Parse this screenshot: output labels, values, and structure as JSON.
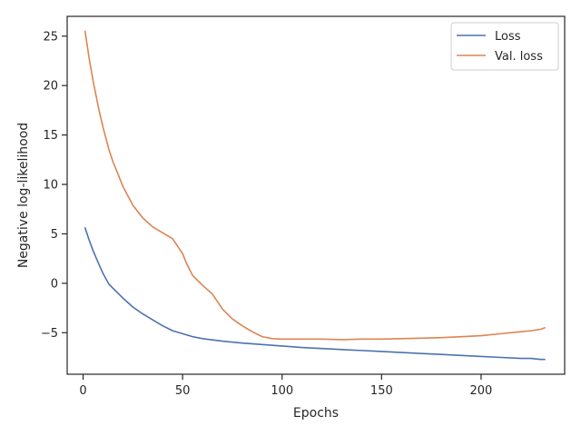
{
  "chart_data": {
    "type": "line",
    "xlabel": "Epochs",
    "ylabel": "Negative log-likelihood",
    "xlim": [
      -8,
      242
    ],
    "ylim": [
      -9.2,
      27.0
    ],
    "xticks": [
      0,
      50,
      100,
      150,
      200
    ],
    "yticks": [
      -5,
      0,
      5,
      10,
      15,
      20,
      25
    ],
    "xtick_labels": [
      "0",
      "50",
      "100",
      "150",
      "200"
    ],
    "ytick_labels": [
      "−5",
      "0",
      "5",
      "10",
      "15",
      "20",
      "25"
    ],
    "grid": false,
    "legend_position": "top-right",
    "series": [
      {
        "name": "Loss",
        "color": "#4c72b0",
        "x": [
          1,
          3,
          5,
          8,
          10,
          13,
          15,
          20,
          25,
          30,
          35,
          40,
          45,
          50,
          55,
          60,
          70,
          80,
          90,
          100,
          110,
          120,
          130,
          140,
          150,
          160,
          170,
          180,
          190,
          200,
          210,
          220,
          225,
          230,
          232
        ],
        "y": [
          5.6,
          4.4,
          3.3,
          1.9,
          1.0,
          -0.1,
          -0.5,
          -1.5,
          -2.4,
          -3.1,
          -3.7,
          -4.3,
          -4.8,
          -5.1,
          -5.4,
          -5.6,
          -5.85,
          -6.05,
          -6.2,
          -6.35,
          -6.5,
          -6.6,
          -6.7,
          -6.8,
          -6.9,
          -7.0,
          -7.1,
          -7.2,
          -7.3,
          -7.4,
          -7.5,
          -7.6,
          -7.6,
          -7.7,
          -7.7
        ]
      },
      {
        "name": "Val. loss",
        "color": "#dd8452",
        "x": [
          1,
          3,
          5,
          8,
          10,
          13,
          15,
          20,
          25,
          30,
          35,
          40,
          45,
          50,
          52,
          55,
          58,
          60,
          65,
          70,
          75,
          80,
          85,
          90,
          95,
          100,
          110,
          120,
          130,
          140,
          150,
          160,
          170,
          180,
          190,
          200,
          210,
          220,
          225,
          230,
          232
        ],
        "y": [
          25.5,
          22.8,
          20.5,
          17.5,
          15.8,
          13.5,
          12.3,
          9.8,
          7.9,
          6.6,
          5.7,
          5.1,
          4.5,
          3.0,
          2.0,
          0.8,
          0.2,
          -0.2,
          -1.1,
          -2.6,
          -3.6,
          -4.3,
          -4.9,
          -5.4,
          -5.6,
          -5.65,
          -5.65,
          -5.65,
          -5.7,
          -5.65,
          -5.65,
          -5.6,
          -5.55,
          -5.5,
          -5.4,
          -5.3,
          -5.1,
          -4.9,
          -4.8,
          -4.65,
          -4.5
        ]
      }
    ]
  }
}
